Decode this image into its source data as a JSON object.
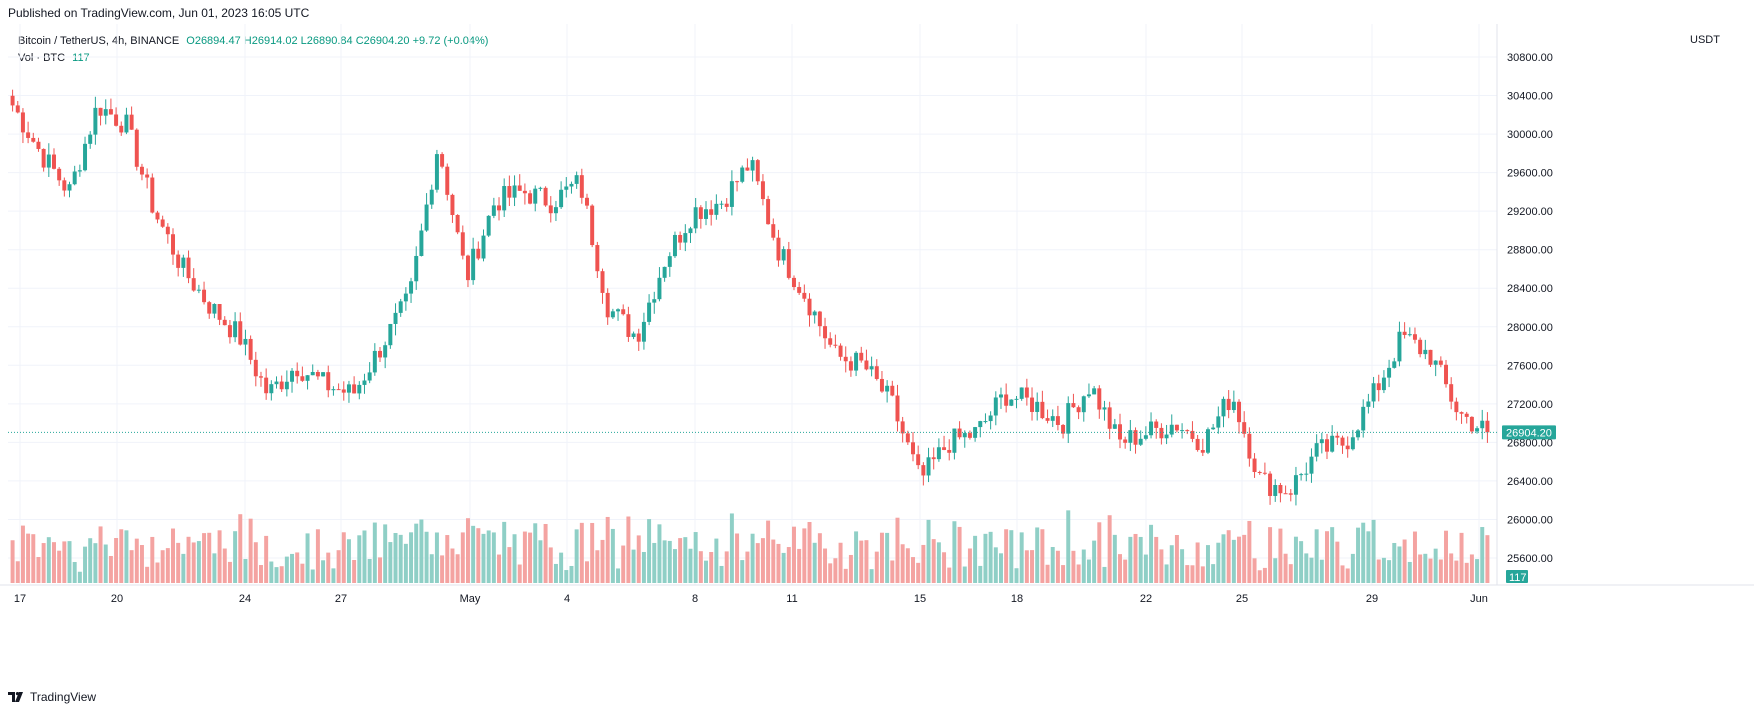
{
  "published": "Published on TradingView.com, Jun 01, 2023 16:05 UTC",
  "legend": {
    "symbol": "Bitcoin / TetherUS, 4h, BINANCE",
    "open": "O26894.47",
    "high": "H26914.02",
    "low": "L26890.84",
    "close": "C26904.20",
    "change": "+9.72 (+0.04%)"
  },
  "volume_legend": {
    "label": "Vol · BTC",
    "value": "117"
  },
  "currency": "USDT",
  "price_label": "26904.20",
  "volume_label": "117",
  "footer": {
    "logo_text": "TradingView",
    "icon": "tradingview-logo-icon"
  },
  "colors": {
    "up": "#26a69a",
    "down": "#ef5350",
    "up_vol": "#8fcfc6",
    "down_vol": "#f4a3a1",
    "grid": "#f0f3fa",
    "price_badge": "#26a69a"
  },
  "chart_data": {
    "type": "candlestick",
    "symbol": "Bitcoin / TetherUS",
    "interval": "4h",
    "exchange": "BINANCE",
    "ylim": [
      25300,
      30900
    ],
    "y_ticks": [
      "30800.00",
      "30400.00",
      "30000.00",
      "29600.00",
      "29200.00",
      "28800.00",
      "28400.00",
      "28000.00",
      "27600.00",
      "27200.00",
      "26800.00",
      "26400.00",
      "26000.00",
      "25600.00"
    ],
    "x_ticks": [
      "17",
      "20",
      "24",
      "27",
      "May",
      "4",
      "8",
      "11",
      "15",
      "18",
      "22",
      "25",
      "29",
      "Jun"
    ],
    "last_price": 26904.2,
    "grid": true,
    "series": [
      {
        "name": "price",
        "close_path": [
          {
            "date": "Apr 17",
            "close": 30300
          },
          {
            "date": "Apr 17",
            "close": 29800
          },
          {
            "date": "Apr 18",
            "close": 29400
          },
          {
            "date": "Apr 18",
            "close": 30300
          },
          {
            "date": "Apr 19",
            "close": 30100
          },
          {
            "date": "Apr 19",
            "close": 29200
          },
          {
            "date": "Apr 20",
            "close": 28600
          },
          {
            "date": "Apr 20",
            "close": 28200
          },
          {
            "date": "Apr 21",
            "close": 27900
          },
          {
            "date": "Apr 21",
            "close": 27300
          },
          {
            "date": "Apr 22",
            "close": 27600
          },
          {
            "date": "Apr 23",
            "close": 27400
          },
          {
            "date": "Apr 24",
            "close": 27300
          },
          {
            "date": "Apr 24",
            "close": 27800
          },
          {
            "date": "Apr 25",
            "close": 28300
          },
          {
            "date": "Apr 26",
            "close": 29900
          },
          {
            "date": "Apr 26",
            "close": 28500
          },
          {
            "date": "Apr 27",
            "close": 29300
          },
          {
            "date": "Apr 28",
            "close": 29400
          },
          {
            "date": "Apr 29",
            "close": 29300
          },
          {
            "date": "Apr 30",
            "close": 29500
          },
          {
            "date": "May 1",
            "close": 28200
          },
          {
            "date": "May 2",
            "close": 27900
          },
          {
            "date": "May 3",
            "close": 28700
          },
          {
            "date": "May 4",
            "close": 29200
          },
          {
            "date": "May 5",
            "close": 29300
          },
          {
            "date": "May 6",
            "close": 29700
          },
          {
            "date": "May 7",
            "close": 28800
          },
          {
            "date": "May 8",
            "close": 28300
          },
          {
            "date": "May 9",
            "close": 27700
          },
          {
            "date": "May 10",
            "close": 27600
          },
          {
            "date": "May 11",
            "close": 27200
          },
          {
            "date": "May 12",
            "close": 26400
          },
          {
            "date": "May 13",
            "close": 26800
          },
          {
            "date": "May 14",
            "close": 26900
          },
          {
            "date": "May 15",
            "close": 27300
          },
          {
            "date": "May 16",
            "close": 27200
          },
          {
            "date": "May 17",
            "close": 27000
          },
          {
            "date": "May 18",
            "close": 27400
          },
          {
            "date": "May 19",
            "close": 26800
          },
          {
            "date": "May 20",
            "close": 26900
          },
          {
            "date": "May 21",
            "close": 27000
          },
          {
            "date": "May 22",
            "close": 26800
          },
          {
            "date": "May 23",
            "close": 27300
          },
          {
            "date": "May 24",
            "close": 26400
          },
          {
            "date": "May 25",
            "close": 26300
          },
          {
            "date": "May 26",
            "close": 26700
          },
          {
            "date": "May 27",
            "close": 26800
          },
          {
            "date": "May 28",
            "close": 27300
          },
          {
            "date": "May 29",
            "close": 27900
          },
          {
            "date": "May 30",
            "close": 27700
          },
          {
            "date": "May 31",
            "close": 27100
          },
          {
            "date": "Jun 1",
            "close": 26904.2
          }
        ]
      }
    ]
  }
}
